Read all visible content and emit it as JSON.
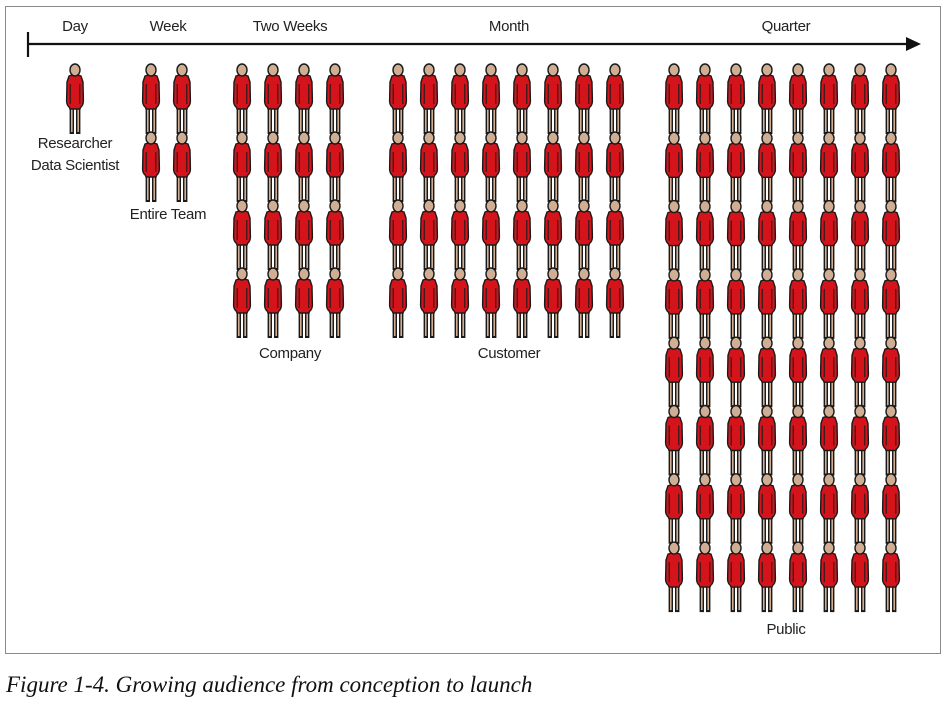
{
  "timeline": {
    "labels": [
      {
        "id": "day",
        "text": "Day"
      },
      {
        "id": "week",
        "text": "Week"
      },
      {
        "id": "two-weeks",
        "text": "Two Weeks"
      },
      {
        "id": "month",
        "text": "Month"
      },
      {
        "id": "quarter",
        "text": "Quarter"
      }
    ]
  },
  "groups": [
    {
      "id": "researcher",
      "cols": 1,
      "rows": 1,
      "label_lines": [
        "Researcher",
        "Data Scientist"
      ]
    },
    {
      "id": "team",
      "cols": 2,
      "rows": 2,
      "label_lines": [
        "Entire Team"
      ]
    },
    {
      "id": "company",
      "cols": 4,
      "rows": 4,
      "label_lines": [
        "Company"
      ]
    },
    {
      "id": "customer",
      "cols": 8,
      "rows": 4,
      "label_lines": [
        "Customer"
      ]
    },
    {
      "id": "public",
      "cols": 8,
      "rows": 8,
      "label_lines": [
        "Public"
      ]
    }
  ],
  "colors": {
    "body": "#d5131a",
    "head": "#cfae93",
    "outline": "#1a1a1a"
  },
  "icon": "person-icon",
  "caption": "Figure 1-4. Growing audience from conception to launch"
}
